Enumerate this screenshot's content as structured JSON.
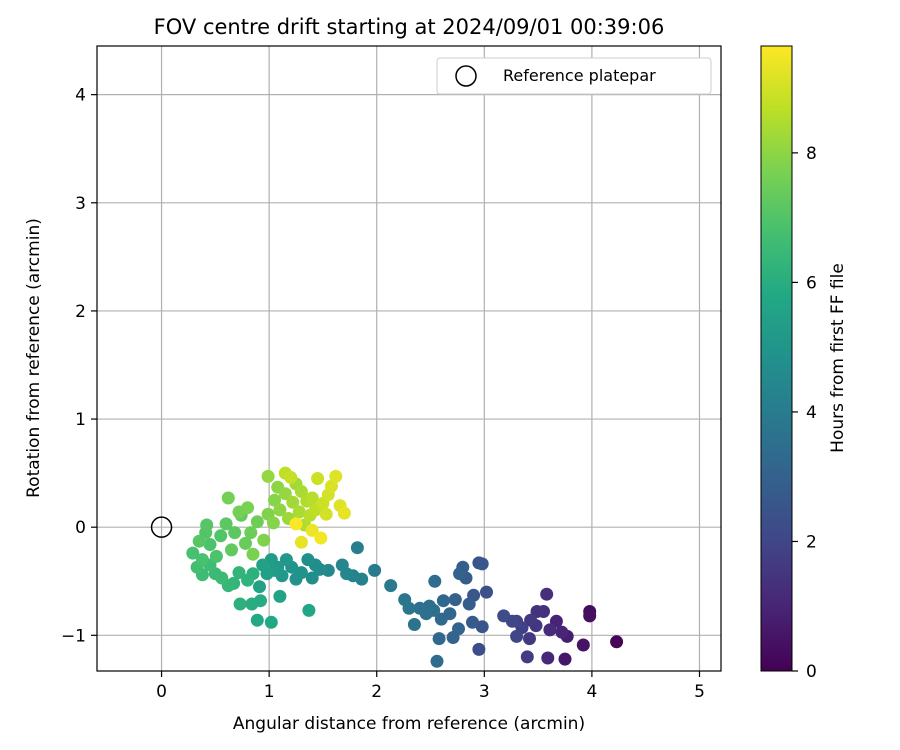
{
  "chart_data": {
    "type": "scatter",
    "title": "FOV centre drift starting at 2024/09/01 00:39:06",
    "xlabel": "Angular distance from reference (arcmin)",
    "ylabel": "Rotation from reference (arcmin)",
    "xlim": [
      -0.6,
      5.2
    ],
    "ylim": [
      -1.33,
      4.45
    ],
    "xticks": [
      0,
      1,
      2,
      3,
      4,
      5
    ],
    "yticks": [
      -1,
      0,
      1,
      2,
      3,
      4
    ],
    "grid": true,
    "legend": {
      "location": "upper right",
      "entries": [
        "Reference platepar"
      ]
    },
    "colorbar": {
      "label": "Hours from first FF file",
      "min": 0,
      "max": 9.65,
      "ticks": [
        0,
        2,
        4,
        6,
        8
      ],
      "colormap": "viridis"
    },
    "reference": {
      "x": 0,
      "y": 0,
      "marker": "open-circle"
    },
    "series": [
      {
        "points": [
          [
            4.23,
            -1.06,
            0.1
          ],
          [
            3.98,
            -0.78,
            0.3
          ],
          [
            3.98,
            -0.82,
            0.4
          ],
          [
            3.92,
            -1.09,
            0.5
          ],
          [
            3.75,
            -1.22,
            0.6
          ],
          [
            3.77,
            -1.01,
            0.8
          ],
          [
            3.67,
            -0.87,
            0.9
          ],
          [
            3.72,
            -0.97,
            1.0
          ],
          [
            3.59,
            -1.21,
            1.1
          ],
          [
            3.61,
            -0.95,
            1.2
          ],
          [
            3.55,
            -0.78,
            1.3
          ],
          [
            3.58,
            -0.62,
            1.3
          ],
          [
            3.49,
            -0.78,
            1.4
          ],
          [
            3.48,
            -0.91,
            1.5
          ],
          [
            3.42,
            -1.03,
            1.6
          ],
          [
            3.43,
            -0.86,
            1.6
          ],
          [
            3.4,
            -1.2,
            1.7
          ],
          [
            3.35,
            -0.93,
            1.8
          ],
          [
            3.3,
            -0.87,
            1.9
          ],
          [
            3.3,
            -1.01,
            2.0
          ],
          [
            3.26,
            -0.87,
            2.1
          ],
          [
            3.18,
            -0.82,
            2.2
          ],
          [
            2.95,
            -1.13,
            2.3
          ],
          [
            3.02,
            -0.6,
            2.4
          ],
          [
            2.98,
            -0.92,
            2.5
          ],
          [
            2.95,
            -0.33,
            2.5
          ],
          [
            2.98,
            -0.34,
            2.6
          ],
          [
            2.9,
            -0.63,
            2.6
          ],
          [
            2.89,
            -0.88,
            2.7
          ],
          [
            2.86,
            -0.71,
            2.8
          ],
          [
            2.83,
            -0.47,
            2.8
          ],
          [
            2.8,
            -0.37,
            2.9
          ],
          [
            2.77,
            -0.43,
            3.0
          ],
          [
            2.73,
            -0.67,
            3.0
          ],
          [
            2.76,
            -0.94,
            3.1
          ],
          [
            2.71,
            -1.02,
            3.1
          ],
          [
            2.68,
            -0.8,
            3.2
          ],
          [
            2.62,
            -0.68,
            3.2
          ],
          [
            2.6,
            -0.85,
            3.3
          ],
          [
            2.58,
            -1.03,
            3.3
          ],
          [
            2.56,
            -1.24,
            3.4
          ],
          [
            2.54,
            -0.5,
            3.4
          ],
          [
            2.53,
            -0.77,
            3.5
          ],
          [
            2.49,
            -0.73,
            3.5
          ],
          [
            2.46,
            -0.8,
            3.6
          ],
          [
            2.4,
            -0.75,
            3.6
          ],
          [
            2.35,
            -0.9,
            3.7
          ],
          [
            2.26,
            -0.67,
            3.8
          ],
          [
            2.3,
            -0.75,
            3.8
          ],
          [
            2.13,
            -0.54,
            3.9
          ],
          [
            1.98,
            -0.4,
            4.0
          ],
          [
            1.82,
            -0.19,
            4.1
          ],
          [
            1.86,
            -0.48,
            4.2
          ],
          [
            1.78,
            -0.45,
            4.3
          ],
          [
            1.72,
            -0.43,
            4.4
          ],
          [
            1.68,
            -0.35,
            4.4
          ],
          [
            1.55,
            -0.4,
            4.5
          ],
          [
            1.47,
            -0.39,
            4.6
          ],
          [
            1.4,
            -0.47,
            4.7
          ],
          [
            1.43,
            -0.35,
            4.7
          ],
          [
            1.36,
            -0.3,
            4.8
          ],
          [
            1.3,
            -0.42,
            4.9
          ],
          [
            1.25,
            -0.48,
            4.9
          ],
          [
            1.21,
            -0.37,
            5.0
          ],
          [
            1.16,
            -0.3,
            5.1
          ],
          [
            1.12,
            -0.45,
            5.1
          ],
          [
            1.08,
            -0.37,
            5.2
          ],
          [
            1.05,
            -0.4,
            5.3
          ],
          [
            1.02,
            -0.3,
            5.3
          ],
          [
            0.98,
            -0.43,
            5.4
          ],
          [
            0.94,
            -0.35,
            5.5
          ],
          [
            0.91,
            -0.55,
            5.5
          ],
          [
            1.1,
            -0.64,
            5.6
          ],
          [
            1.37,
            -0.77,
            5.7
          ],
          [
            0.89,
            -0.86,
            5.8
          ],
          [
            1.02,
            -0.88,
            5.8
          ],
          [
            0.92,
            -0.68,
            5.9
          ],
          [
            0.84,
            -0.71,
            6.0
          ],
          [
            0.73,
            -0.71,
            6.1
          ],
          [
            0.85,
            -0.43,
            6.1
          ],
          [
            0.8,
            -0.49,
            6.2
          ],
          [
            0.72,
            -0.42,
            6.3
          ],
          [
            0.67,
            -0.52,
            6.3
          ],
          [
            0.62,
            -0.54,
            6.4
          ],
          [
            0.56,
            -0.47,
            6.5
          ],
          [
            0.5,
            -0.43,
            6.5
          ],
          [
            0.45,
            -0.35,
            6.6
          ],
          [
            0.38,
            -0.44,
            6.6
          ],
          [
            0.33,
            -0.37,
            6.7
          ],
          [
            0.29,
            -0.24,
            6.8
          ],
          [
            0.38,
            -0.3,
            6.8
          ],
          [
            0.45,
            -0.16,
            6.9
          ],
          [
            0.51,
            -0.27,
            6.9
          ],
          [
            0.55,
            -0.08,
            7.0
          ],
          [
            0.41,
            -0.05,
            7.0
          ],
          [
            0.35,
            -0.13,
            7.1
          ],
          [
            0.42,
            0.02,
            7.1
          ],
          [
            0.6,
            0.03,
            7.2
          ],
          [
            0.68,
            -0.05,
            7.2
          ],
          [
            0.74,
            0.11,
            7.3
          ],
          [
            0.65,
            -0.21,
            7.3
          ],
          [
            0.78,
            -0.15,
            7.4
          ],
          [
            0.83,
            -0.05,
            7.5
          ],
          [
            0.89,
            0.05,
            7.5
          ],
          [
            0.72,
            0.14,
            7.6
          ],
          [
            0.62,
            0.27,
            7.6
          ],
          [
            0.8,
            0.18,
            7.7
          ],
          [
            0.85,
            -0.25,
            7.7
          ],
          [
            0.95,
            -0.12,
            7.8
          ],
          [
            0.99,
            0.12,
            7.8
          ],
          [
            1.04,
            0.04,
            7.9
          ],
          [
            1.05,
            0.25,
            7.9
          ],
          [
            1.1,
            0.16,
            8.0
          ],
          [
            1.08,
            0.37,
            8.0
          ],
          [
            0.99,
            0.47,
            8.1
          ],
          [
            1.15,
            0.31,
            8.1
          ],
          [
            1.18,
            0.08,
            8.2
          ],
          [
            1.22,
            0.23,
            8.3
          ],
          [
            1.25,
            0.4,
            8.3
          ],
          [
            1.28,
            0.14,
            8.4
          ],
          [
            1.3,
            0.33,
            8.4
          ],
          [
            1.33,
            0.02,
            8.5
          ],
          [
            1.35,
            0.24,
            8.5
          ],
          [
            1.38,
            0.11,
            8.6
          ],
          [
            1.4,
            0.27,
            8.6
          ],
          [
            1.43,
            0.16,
            8.7
          ],
          [
            1.15,
            0.5,
            8.7
          ],
          [
            1.2,
            0.46,
            8.8
          ],
          [
            1.45,
            0.45,
            8.9
          ],
          [
            1.5,
            0.22,
            8.9
          ],
          [
            1.53,
            0.12,
            9.0
          ],
          [
            1.55,
            0.3,
            9.0
          ],
          [
            1.58,
            0.38,
            9.1
          ],
          [
            1.62,
            0.47,
            9.2
          ],
          [
            1.66,
            0.2,
            9.2
          ],
          [
            1.7,
            0.13,
            9.3
          ],
          [
            1.3,
            -0.14,
            9.3
          ],
          [
            1.4,
            -0.03,
            9.4
          ],
          [
            1.48,
            -0.1,
            9.5
          ],
          [
            1.25,
            0.03,
            9.6
          ]
        ]
      }
    ]
  }
}
